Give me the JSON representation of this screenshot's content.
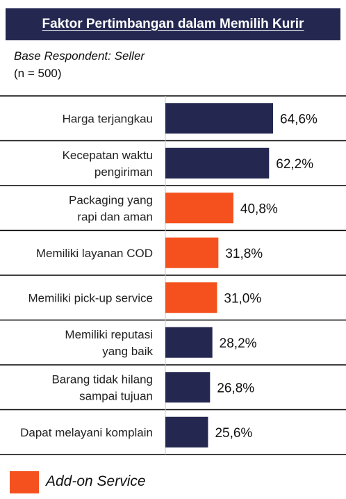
{
  "header": {
    "title": "Faktor Pertimbangan dalam Memilih Kurir",
    "base_label": "Base Respondent: Seller",
    "n_label": "(n = 500)"
  },
  "colors": {
    "navy": "#242851",
    "orange": "#f4511e",
    "title_bg": "#242851",
    "divider": "#000000"
  },
  "chart_data": {
    "type": "bar",
    "orientation": "horizontal",
    "title": "Faktor Pertimbangan dalam Memilih Kurir",
    "categories": [
      [
        "Harga terjangkau"
      ],
      [
        "Kecepatan waktu",
        "pengiriman"
      ],
      [
        "Packaging yang",
        "rapi dan aman"
      ],
      [
        "Memiliki layanan COD"
      ],
      [
        "Memiliki pick-up service"
      ],
      [
        "Memiliki reputasi",
        "yang baik"
      ],
      [
        "Barang tidak hilang",
        "sampai tujuan"
      ],
      [
        "Dapat melayani komplain"
      ]
    ],
    "values": [
      64.6,
      62.2,
      40.8,
      31.8,
      31.0,
      28.2,
      26.8,
      25.6
    ],
    "value_labels": [
      "64,6%",
      "62,2%",
      "40,8%",
      "31,8%",
      "31,0%",
      "28,2%",
      "26,8%",
      "25,6%"
    ],
    "is_addon": [
      false,
      false,
      true,
      true,
      true,
      false,
      false,
      false
    ],
    "unit": "%"
  },
  "legend": {
    "label": "Add-on Service",
    "color_key": "orange"
  }
}
